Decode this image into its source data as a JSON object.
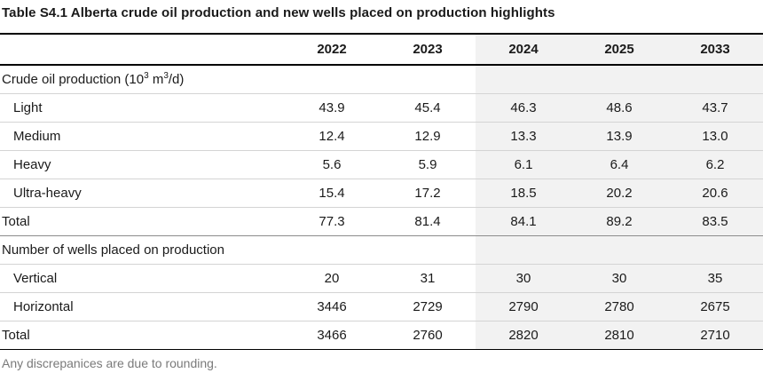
{
  "title": "Table S4.1  Alberta crude oil production and new wells placed on production highlights",
  "columns": [
    "2022",
    "2023",
    "2024",
    "2025",
    "2033"
  ],
  "section1": {
    "label_pre": "Crude oil production (10",
    "label_sup1": "3",
    "label_mid": " m",
    "label_sup2": "3",
    "label_post": "/d)",
    "rows": [
      {
        "label": "Light",
        "values": [
          "43.9",
          "45.4",
          "46.3",
          "48.6",
          "43.7"
        ]
      },
      {
        "label": "Medium",
        "values": [
          "12.4",
          "12.9",
          "13.3",
          "13.9",
          "13.0"
        ]
      },
      {
        "label": "Heavy",
        "values": [
          "5.6",
          "5.9",
          "6.1",
          "6.4",
          "6.2"
        ]
      },
      {
        "label": "Ultra-heavy",
        "values": [
          "15.4",
          "17.2",
          "18.5",
          "20.2",
          "20.6"
        ]
      }
    ],
    "total": {
      "label": "Total",
      "values": [
        "77.3",
        "81.4",
        "84.1",
        "89.2",
        "83.5"
      ]
    }
  },
  "section2": {
    "label": "Number of wells placed on production",
    "rows": [
      {
        "label": "Vertical",
        "values": [
          "20",
          "31",
          "30",
          "30",
          "35"
        ]
      },
      {
        "label": "Horizontal",
        "values": [
          "3446",
          "2729",
          "2790",
          "2780",
          "2675"
        ]
      }
    ],
    "total": {
      "label": "Total",
      "values": [
        "3466",
        "2760",
        "2820",
        "2810",
        "2710"
      ]
    }
  },
  "note": "Any discrepanices are due to rounding."
}
